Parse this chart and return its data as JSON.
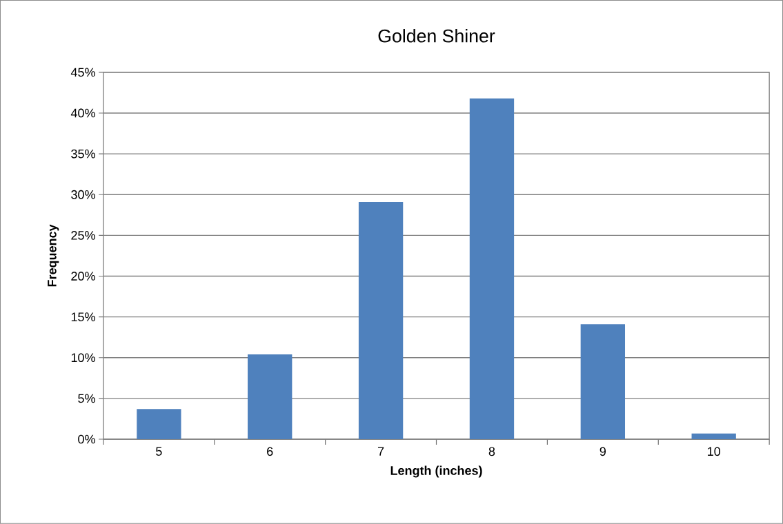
{
  "chart_data": {
    "type": "bar",
    "title": "Golden Shiner",
    "xlabel": "Length (inches)",
    "ylabel": "Frequency",
    "categories": [
      "5",
      "6",
      "7",
      "8",
      "9",
      "10"
    ],
    "values": [
      3.7,
      10.4,
      29.1,
      41.8,
      14.1,
      0.7
    ],
    "color": "#4f81bd",
    "ylim": [
      0,
      45
    ],
    "yticks": [
      {
        "value": 0,
        "label": "0%"
      },
      {
        "value": 5,
        "label": "5%"
      },
      {
        "value": 10,
        "label": "10%"
      },
      {
        "value": 15,
        "label": "15%"
      },
      {
        "value": 20,
        "label": "20%"
      },
      {
        "value": 25,
        "label": "25%"
      },
      {
        "value": 30,
        "label": "30%"
      },
      {
        "value": 35,
        "label": "35%"
      },
      {
        "value": 40,
        "label": "40%"
      },
      {
        "value": 45,
        "label": "45%"
      }
    ],
    "grid": "y"
  }
}
